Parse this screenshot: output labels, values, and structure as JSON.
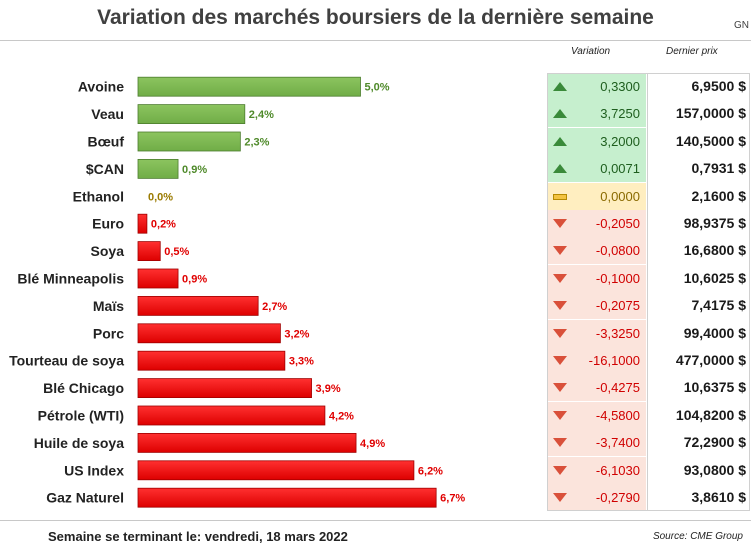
{
  "title": "Variation des marchés boursiers de la dernière semaine",
  "title_corner": "GN",
  "header": {
    "variation_label": "Variation",
    "last_price_label": "Dernier prix"
  },
  "footer": {
    "week_label": "Semaine se terminant le: vendredi, 18 mars 2022",
    "source": "Source: CME Group"
  },
  "colors": {
    "up": "#70ad47",
    "down": "#ff0000",
    "flat": "#ffc000",
    "up_bg": "#c6efce",
    "down_bg": "#fbe4dc",
    "flat_bg": "#ffeec0"
  },
  "rows": [
    {
      "name": "Avoine",
      "pct": 5.0,
      "pct_label": "5,0%",
      "direction": "up",
      "variation": "0,3300",
      "last": "6,9500 $"
    },
    {
      "name": "Veau",
      "pct": 2.4,
      "pct_label": "2,4%",
      "direction": "up",
      "variation": "3,7250",
      "last": "157,0000 $"
    },
    {
      "name": "Bœuf",
      "pct": 2.3,
      "pct_label": "2,3%",
      "direction": "up",
      "variation": "3,2000",
      "last": "140,5000 $"
    },
    {
      "name": "$CAN",
      "pct": 0.9,
      "pct_label": "0,9%",
      "direction": "up",
      "variation": "0,0071",
      "last": "0,7931 $"
    },
    {
      "name": "Ethanol",
      "pct": 0.0,
      "pct_label": "0,0%",
      "direction": "flat",
      "variation": "0,0000",
      "last": "2,1600 $"
    },
    {
      "name": "Euro",
      "pct": 0.2,
      "pct_label": "0,2%",
      "direction": "down",
      "variation": "-0,2050",
      "last": "98,9375 $"
    },
    {
      "name": "Soya",
      "pct": 0.5,
      "pct_label": "0,5%",
      "direction": "down",
      "variation": "-0,0800",
      "last": "16,6800 $"
    },
    {
      "name": "Blé Minneapolis",
      "pct": 0.9,
      "pct_label": "0,9%",
      "direction": "down",
      "variation": "-0,1000",
      "last": "10,6025 $"
    },
    {
      "name": "Maïs",
      "pct": 2.7,
      "pct_label": "2,7%",
      "direction": "down",
      "variation": "-0,2075",
      "last": "7,4175 $"
    },
    {
      "name": "Porc",
      "pct": 3.2,
      "pct_label": "3,2%",
      "direction": "down",
      "variation": "-3,3250",
      "last": "99,4000 $"
    },
    {
      "name": "Tourteau de soya",
      "pct": 3.3,
      "pct_label": "3,3%",
      "direction": "down",
      "variation": "-16,1000",
      "last": "477,0000 $"
    },
    {
      "name": "Blé Chicago",
      "pct": 3.9,
      "pct_label": "3,9%",
      "direction": "down",
      "variation": "-0,4275",
      "last": "10,6375 $"
    },
    {
      "name": "Pétrole (WTI)",
      "pct": 4.2,
      "pct_label": "4,2%",
      "direction": "down",
      "variation": "-4,5800",
      "last": "104,8200 $"
    },
    {
      "name": "Huile de soya",
      "pct": 4.9,
      "pct_label": "4,9%",
      "direction": "down",
      "variation": "-3,7400",
      "last": "72,2900 $"
    },
    {
      "name": "US Index",
      "pct": 6.2,
      "pct_label": "6,2%",
      "direction": "down",
      "variation": "-6,1030",
      "last": "93,0800 $"
    },
    {
      "name": "Gaz Naturel",
      "pct": 6.7,
      "pct_label": "6,7%",
      "direction": "down",
      "variation": "-0,2790",
      "last": "3,8610 $"
    }
  ],
  "chart_data": {
    "type": "bar",
    "orientation": "horizontal",
    "categories": [
      "Avoine",
      "Veau",
      "Bœuf",
      "$CAN",
      "Ethanol",
      "Euro",
      "Soya",
      "Blé Minneapolis",
      "Maïs",
      "Porc",
      "Tourteau de soya",
      "Blé Chicago",
      "Pétrole (WTI)",
      "Huile de soya",
      "US Index",
      "Gaz Naturel"
    ],
    "values": [
      5.0,
      2.4,
      2.3,
      0.9,
      0.0,
      0.2,
      0.5,
      0.9,
      2.7,
      3.2,
      3.3,
      3.9,
      4.2,
      4.9,
      6.2,
      6.7
    ],
    "directions": [
      "up",
      "up",
      "up",
      "up",
      "flat",
      "down",
      "down",
      "down",
      "down",
      "down",
      "down",
      "down",
      "down",
      "down",
      "down",
      "down"
    ],
    "title": "Variation des marchés boursiers de la dernière semaine",
    "xlabel": "",
    "ylabel": "",
    "grid": false
  }
}
